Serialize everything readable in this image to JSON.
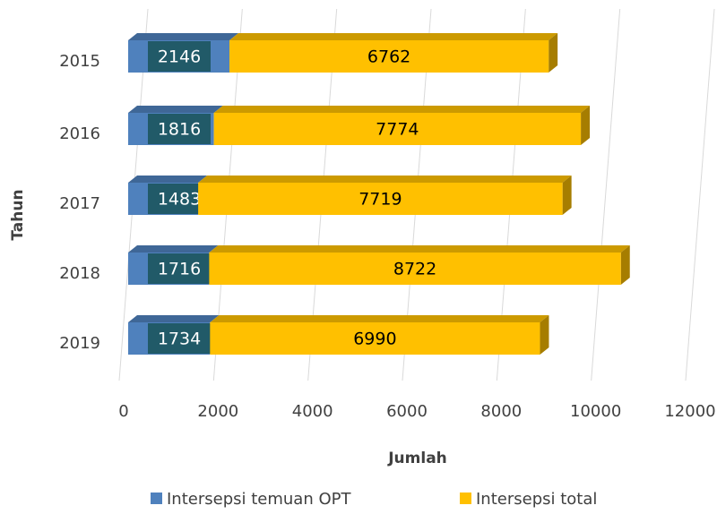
{
  "chart_data": {
    "type": "stacked-bar-horizontal",
    "x_label": "Jumlah",
    "y_label": "Tahun",
    "categories": [
      "2015",
      "2016",
      "2017",
      "2018",
      "2019"
    ],
    "series": [
      {
        "name": "Intersepsi temuan OPT",
        "color": "#4f81bd",
        "values": [
          2146,
          1816,
          1483,
          1716,
          1734
        ]
      },
      {
        "name": "Intersepsi total",
        "color": "#ffc000",
        "values": [
          6762,
          7774,
          7719,
          8722,
          6990
        ]
      }
    ],
    "xlim": [
      0,
      12000
    ],
    "xticks": [
      0,
      2000,
      4000,
      6000,
      8000,
      10000,
      12000
    ],
    "grid": true,
    "legend": "bottom"
  }
}
